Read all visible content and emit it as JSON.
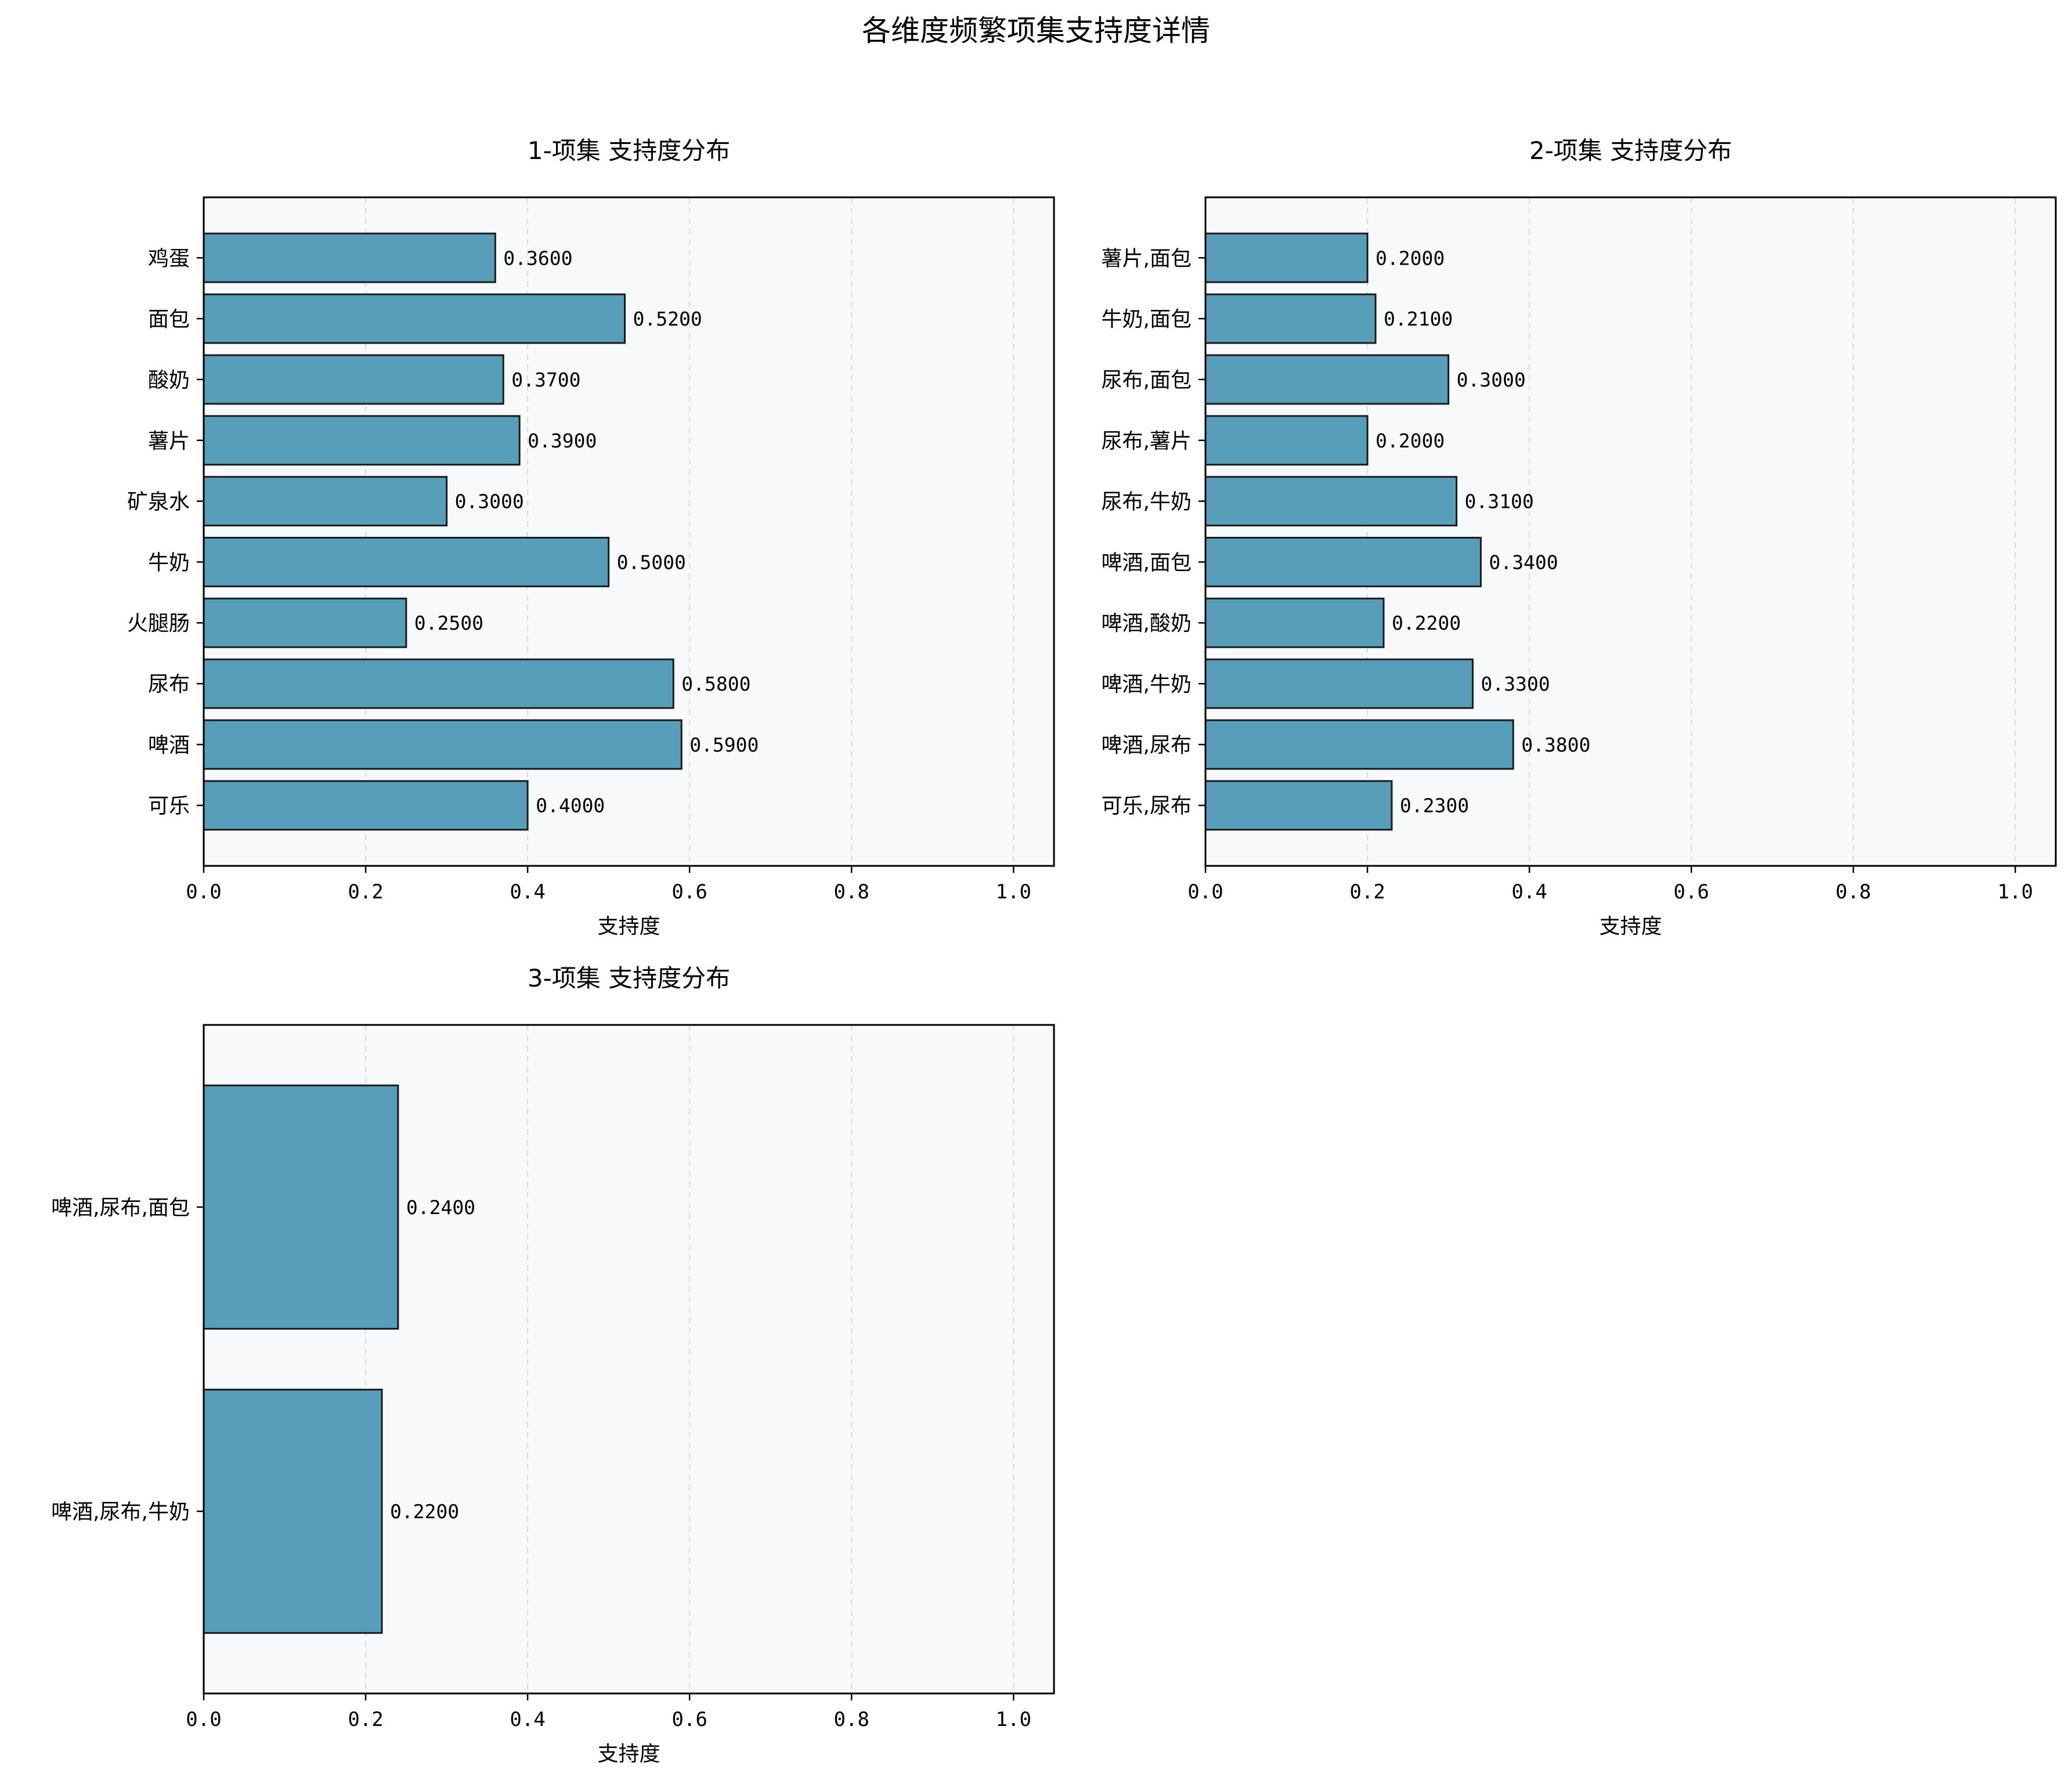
{
  "figure_title": "各维度频繁项集支持度详情",
  "colors": {
    "bar": "#579EBA",
    "bar_edge": "#1b1b1b",
    "plot_bg": "#F7F9FA",
    "grid": "#D5DBE0"
  },
  "chart_data": [
    {
      "type": "bar",
      "orientation": "horizontal",
      "title": "1-项集 支持度分布",
      "xlabel": "支持度",
      "ylabel": "",
      "xlim": [
        0,
        1.05
      ],
      "xticks": [
        0.0,
        0.2,
        0.4,
        0.6,
        0.8,
        1.0
      ],
      "grid": "x-dashed",
      "categories": [
        "鸡蛋",
        "面包",
        "酸奶",
        "薯片",
        "矿泉水",
        "牛奶",
        "火腿肠",
        "尿布",
        "啤酒",
        "可乐"
      ],
      "values": [
        0.36,
        0.52,
        0.37,
        0.39,
        0.3,
        0.5,
        0.25,
        0.58,
        0.59,
        0.4
      ]
    },
    {
      "type": "bar",
      "orientation": "horizontal",
      "title": "2-项集 支持度分布",
      "xlabel": "支持度",
      "ylabel": "",
      "xlim": [
        0,
        1.05
      ],
      "xticks": [
        0.0,
        0.2,
        0.4,
        0.6,
        0.8,
        1.0
      ],
      "grid": "x-dashed",
      "categories": [
        "薯片,面包",
        "牛奶,面包",
        "尿布,面包",
        "尿布,薯片",
        "尿布,牛奶",
        "啤酒,面包",
        "啤酒,酸奶",
        "啤酒,牛奶",
        "啤酒,尿布",
        "可乐,尿布"
      ],
      "values": [
        0.2,
        0.21,
        0.3,
        0.2,
        0.31,
        0.34,
        0.22,
        0.33,
        0.38,
        0.23
      ]
    },
    {
      "type": "bar",
      "orientation": "horizontal",
      "title": "3-项集 支持度分布",
      "xlabel": "支持度",
      "ylabel": "",
      "xlim": [
        0,
        1.05
      ],
      "xticks": [
        0.0,
        0.2,
        0.4,
        0.6,
        0.8,
        1.0
      ],
      "grid": "x-dashed",
      "categories": [
        "啤酒,尿布,面包",
        "啤酒,尿布,牛奶"
      ],
      "values": [
        0.24,
        0.22
      ]
    }
  ]
}
